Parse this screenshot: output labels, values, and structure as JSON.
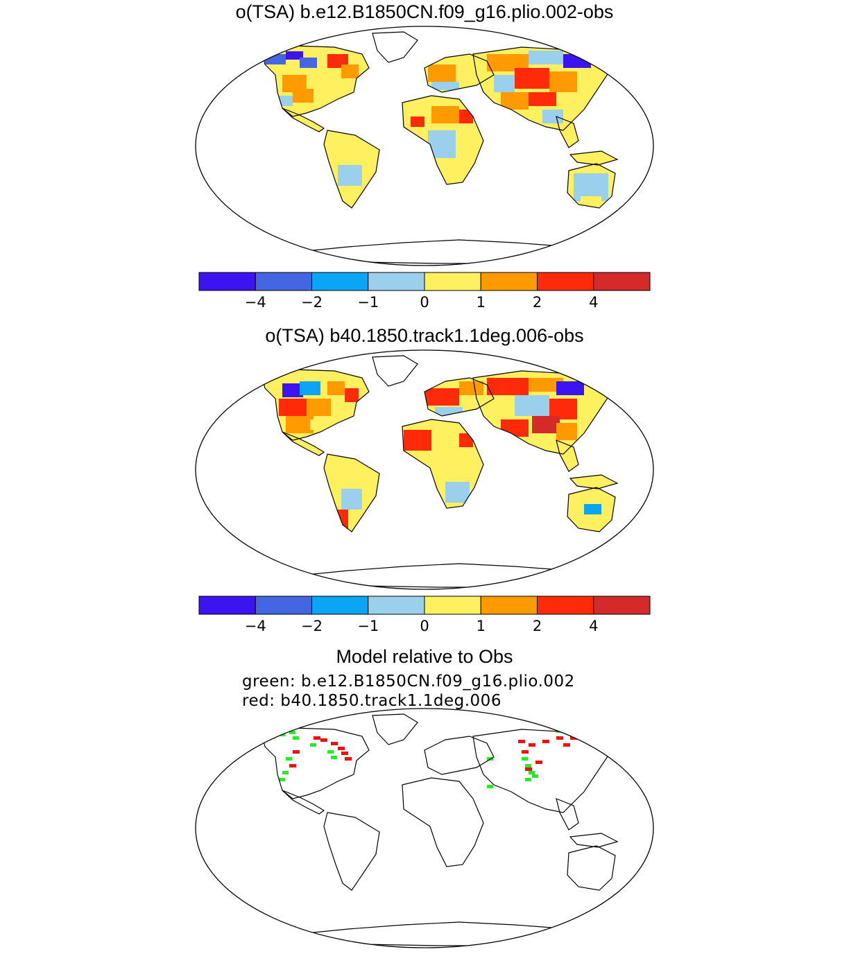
{
  "panels": [
    {
      "title": "o(TSA) b.e12.B1850CN.f09_g16.plio.002-obs",
      "colorbar": {
        "colors": [
          "#3c14f0",
          "#4466e0",
          "#0aa5f5",
          "#9bd0ec",
          "#fff060",
          "#ff9b00",
          "#ff2a0a",
          "#d42a2a"
        ],
        "tick_labels": [
          "−4",
          "−2",
          "−1",
          "0",
          "1",
          "2",
          "4"
        ]
      }
    },
    {
      "title": "o(TSA) b40.1850.track1.1deg.006-obs",
      "colorbar": {
        "colors": [
          "#3c14f0",
          "#4466e0",
          "#0aa5f5",
          "#9bd0ec",
          "#fff060",
          "#ff9b00",
          "#ff2a0a",
          "#d42a2a"
        ],
        "tick_labels": [
          "−4",
          "−2",
          "−1",
          "0",
          "1",
          "2",
          "4"
        ]
      }
    },
    {
      "title": "Model relative to Obs",
      "legend_lines": [
        "green: b.e12.B1850CN.f09_g16.plio.002",
        "red: b40.1850.track1.1deg.006"
      ],
      "colors": {
        "green": "#22ee22",
        "red": "#ee1111"
      }
    }
  ]
}
